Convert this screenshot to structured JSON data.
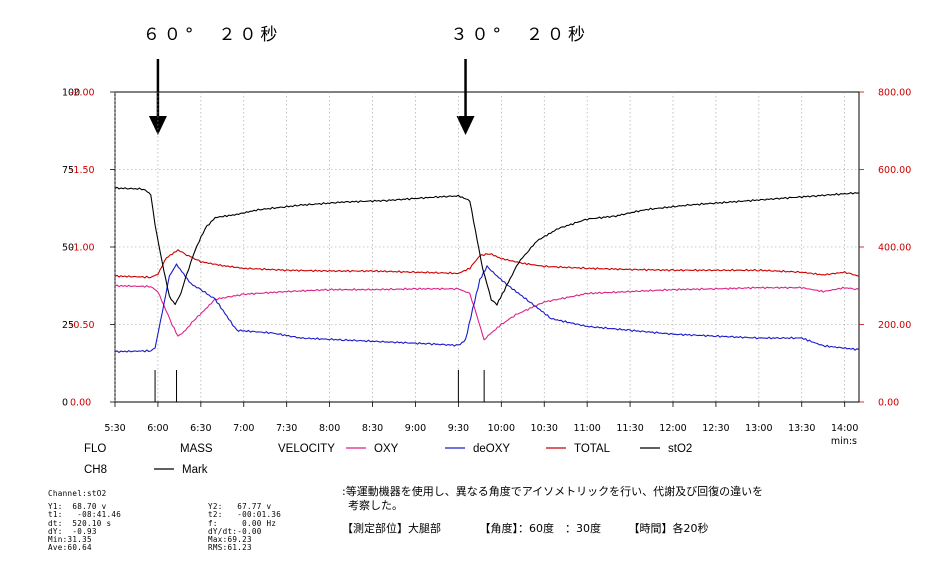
{
  "chart_data": {
    "type": "line",
    "top_annotations": [
      {
        "text": "６０°　２０秒",
        "at": "6:00"
      },
      {
        "text": "３０°　２０秒",
        "at": "9:35"
      }
    ],
    "x_ticks": [
      "5:30",
      "6:00",
      "6:30",
      "7:00",
      "7:30",
      "8:00",
      "8:30",
      "9:00",
      "9:30",
      "10:00",
      "10:30",
      "11:00",
      "11:30",
      "12:00",
      "12:30",
      "13:00",
      "13:30",
      "14:00"
    ],
    "x_unit": "min:s",
    "xlim": [
      "5:30",
      "14:10"
    ],
    "left_axis_a": {
      "ticks": [
        "100",
        "75",
        "50",
        "25",
        "0"
      ],
      "ylim": [
        0,
        100
      ]
    },
    "left_axis_b": {
      "ticks": [
        "-2.00",
        "-1.50",
        "-1.00",
        "-0.50",
        "0.00"
      ],
      "color": "#cc0000"
    },
    "right_axis": {
      "ticks": [
        "800.00",
        "600.00",
        "400.00",
        "200.00",
        "0.00"
      ],
      "ylim": [
        0,
        800
      ],
      "color": "#cc0000"
    },
    "grid": true,
    "series": [
      {
        "name": "stO2",
        "color": "#000000",
        "axis": "left",
        "points": [
          [
            "5:30",
            69
          ],
          [
            "5:50",
            68.7
          ],
          [
            "5:55",
            67
          ],
          [
            "5:58",
            57
          ],
          [
            "6:03",
            45
          ],
          [
            "6:08",
            34
          ],
          [
            "6:12",
            31.5
          ],
          [
            "6:16",
            35
          ],
          [
            "6:20",
            41
          ],
          [
            "6:26",
            49
          ],
          [
            "6:33",
            56
          ],
          [
            "6:40",
            59.5
          ],
          [
            "6:55",
            60.5
          ],
          [
            "7:10",
            62
          ],
          [
            "7:40",
            63.5
          ],
          [
            "8:10",
            64.5
          ],
          [
            "8:40",
            65
          ],
          [
            "9:10",
            66
          ],
          [
            "9:30",
            66.5
          ],
          [
            "9:38",
            65
          ],
          [
            "9:42",
            55
          ],
          [
            "9:47",
            43
          ],
          [
            "9:53",
            33
          ],
          [
            "9:57",
            31.5
          ],
          [
            "10:02",
            36
          ],
          [
            "10:12",
            45
          ],
          [
            "10:25",
            52
          ],
          [
            "10:40",
            56
          ],
          [
            "11:00",
            59
          ],
          [
            "11:20",
            60
          ],
          [
            "11:40",
            62
          ],
          [
            "12:10",
            63.5
          ],
          [
            "12:40",
            64.5
          ],
          [
            "13:10",
            65.5
          ],
          [
            "13:40",
            66.5
          ],
          [
            "14:10",
            67.5
          ]
        ]
      },
      {
        "name": "TOTAL",
        "color": "#cc0000",
        "axis": "right",
        "points": [
          [
            "5:30",
            325
          ],
          [
            "5:55",
            322
          ],
          [
            "6:00",
            330
          ],
          [
            "6:06",
            372
          ],
          [
            "6:14",
            392
          ],
          [
            "6:20",
            380
          ],
          [
            "6:30",
            362
          ],
          [
            "6:45",
            352
          ],
          [
            "7:00",
            345
          ],
          [
            "7:30",
            340
          ],
          [
            "8:00",
            338
          ],
          [
            "8:30",
            338
          ],
          [
            "9:00",
            335
          ],
          [
            "9:30",
            332
          ],
          [
            "9:38",
            345
          ],
          [
            "9:45",
            378
          ],
          [
            "9:52",
            383
          ],
          [
            "10:00",
            370
          ],
          [
            "10:15",
            358
          ],
          [
            "10:30",
            350
          ],
          [
            "11:00",
            345
          ],
          [
            "11:30",
            342
          ],
          [
            "12:00",
            340
          ],
          [
            "12:30",
            340
          ],
          [
            "13:00",
            340
          ],
          [
            "13:30",
            335
          ],
          [
            "13:45",
            328
          ],
          [
            "14:00",
            335
          ],
          [
            "14:10",
            325
          ]
        ]
      },
      {
        "name": "OXY",
        "color": "#dd2288",
        "axis": "right",
        "points": [
          [
            "5:30",
            300
          ],
          [
            "5:55",
            298
          ],
          [
            "6:00",
            285
          ],
          [
            "6:04",
            250
          ],
          [
            "6:10",
            200
          ],
          [
            "6:14",
            170
          ],
          [
            "6:18",
            180
          ],
          [
            "6:25",
            210
          ],
          [
            "6:32",
            235
          ],
          [
            "6:40",
            265
          ],
          [
            "7:00",
            278
          ],
          [
            "7:30",
            285
          ],
          [
            "8:00",
            290
          ],
          [
            "8:30",
            290
          ],
          [
            "9:00",
            292
          ],
          [
            "9:30",
            292
          ],
          [
            "9:38",
            280
          ],
          [
            "9:44",
            210
          ],
          [
            "9:48",
            160
          ],
          [
            "9:52",
            175
          ],
          [
            "10:00",
            200
          ],
          [
            "10:10",
            225
          ],
          [
            "10:30",
            258
          ],
          [
            "11:00",
            280
          ],
          [
            "11:30",
            285
          ],
          [
            "12:00",
            290
          ],
          [
            "12:30",
            292
          ],
          [
            "13:00",
            295
          ],
          [
            "13:30",
            295
          ],
          [
            "13:45",
            285
          ],
          [
            "14:00",
            295
          ],
          [
            "14:10",
            290
          ]
        ]
      },
      {
        "name": "deOXY",
        "color": "#1a1acc",
        "axis": "right",
        "points": [
          [
            "5:30",
            130
          ],
          [
            "5:55",
            132
          ],
          [
            "5:58",
            140
          ],
          [
            "6:03",
            230
          ],
          [
            "6:08",
            325
          ],
          [
            "6:13",
            355
          ],
          [
            "6:18",
            330
          ],
          [
            "6:23",
            305
          ],
          [
            "6:30",
            290
          ],
          [
            "6:40",
            265
          ],
          [
            "6:55",
            185
          ],
          [
            "7:20",
            178
          ],
          [
            "7:40",
            165
          ],
          [
            "8:10",
            160
          ],
          [
            "8:40",
            155
          ],
          [
            "9:10",
            150
          ],
          [
            "9:30",
            146
          ],
          [
            "9:35",
            160
          ],
          [
            "9:40",
            240
          ],
          [
            "9:45",
            315
          ],
          [
            "9:50",
            350
          ],
          [
            "9:57",
            325
          ],
          [
            "10:05",
            300
          ],
          [
            "10:20",
            258
          ],
          [
            "10:35",
            215
          ],
          [
            "11:00",
            195
          ],
          [
            "11:30",
            185
          ],
          [
            "12:00",
            175
          ],
          [
            "12:30",
            170
          ],
          [
            "13:00",
            165
          ],
          [
            "13:30",
            165
          ],
          [
            "13:45",
            145
          ],
          [
            "14:10",
            135
          ]
        ]
      }
    ],
    "marks": [
      "5:58",
      "6:13",
      "9:30",
      "9:48"
    ],
    "legend": [
      {
        "label": "FLO",
        "color": "#000000",
        "line": false
      },
      {
        "label": "MASS",
        "color": "#000000",
        "line": false
      },
      {
        "label": "VELOCITY",
        "color": "#000000",
        "line": false
      },
      {
        "label": "OXY",
        "color": "#dd2288",
        "line": true
      },
      {
        "label": "deOXY",
        "color": "#1a1acc",
        "line": true
      },
      {
        "label": "TOTAL",
        "color": "#cc0000",
        "line": true
      },
      {
        "label": "stO2",
        "color": "#000000",
        "line": true
      },
      {
        "label": "CH8",
        "color": "#000000",
        "line": false
      },
      {
        "label": "Mark",
        "color": "#000000",
        "line": true
      }
    ]
  },
  "stats": {
    "channel": "Channel:stO2",
    "left": [
      "Y1:  68.70 v",
      "t1:   -08:41.46",
      "dt:  520.10 s",
      "dY:  -0.93",
      "Min:31.35",
      "Ave:60.64"
    ],
    "right": [
      "Y2:   67.77 v",
      "t2:   -00:01.36",
      "f:     0.00 Hz",
      "dY/dt:-0.00",
      "Max:69.23",
      "RMS:61.23"
    ]
  },
  "notes": {
    "line1": ":等運動機器を使用し、異なる角度でアイソメトリックを行い、代謝及び回復の違いを",
    "line2": "考察した。",
    "line3": "【測定部位】大腿部　　　　【角度】：60度　：30度　　　【時間】各20秒"
  }
}
